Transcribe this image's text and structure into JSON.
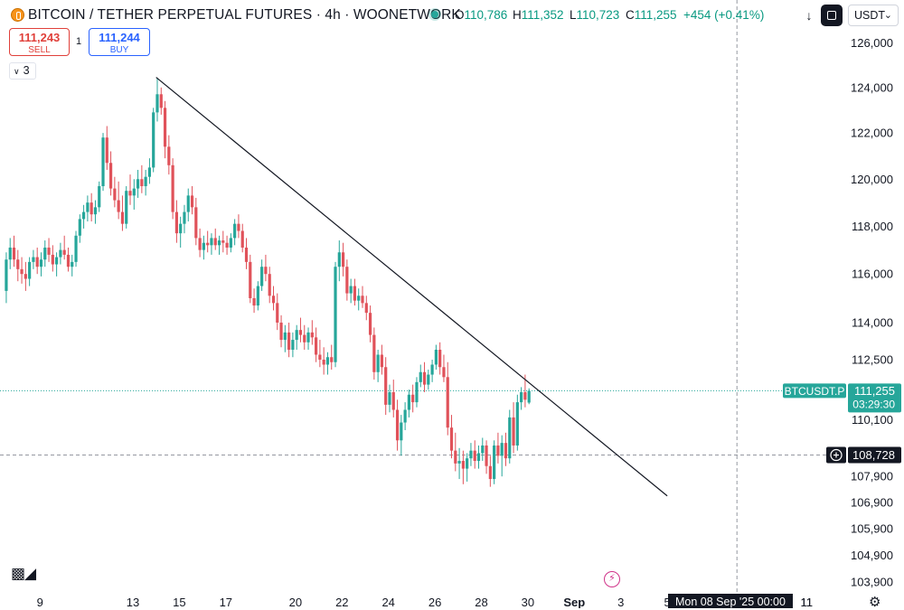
{
  "header": {
    "title": "BITCOIN / TETHER PERPETUAL FUTURES · 4h · WOONETWORK",
    "ohlc": {
      "o_label": "O",
      "o_value": "110,786",
      "h_label": "H",
      "h_value": "111,352",
      "l_label": "L",
      "l_value": "110,723",
      "c_label": "C",
      "c_value": "111,255",
      "change": "+454 (+0.41%)"
    },
    "currency": "USDT",
    "icons": [
      "bitcoin-logo-icon",
      "live-dot-icon",
      "download-icon",
      "fullscreen-icon",
      "chevron-down-icon",
      "plus-circle-icon",
      "tradingview-logo-icon",
      "lightning-icon",
      "gear-icon"
    ]
  },
  "trade": {
    "sell_price": "111,243",
    "sell_label": "SELL",
    "spread": "1",
    "buy_price": "111,244",
    "buy_label": "BUY"
  },
  "indicators_toggle": "3",
  "colors": {
    "up": "#26a69a",
    "down": "#e0525a",
    "trendline": "#131722",
    "price_line": "#26a69a",
    "crosshair": "#9598a1",
    "label_bg": "#131722"
  },
  "chart_data": {
    "type": "candlestick",
    "symbol": "BTCUSDT.P",
    "timeframe": "4h",
    "x_tick_labels": [
      "9",
      "11",
      "13",
      "15",
      "17",
      "20",
      "22",
      "24",
      "26",
      "28",
      "30",
      "Sep",
      "3",
      "5",
      "11"
    ],
    "y_tick_labels": [
      "126,000",
      "124,000",
      "122,000",
      "120,000",
      "118,000",
      "116,000",
      "114,000",
      "112,500",
      "110,100",
      "107,900",
      "106,900",
      "105,900",
      "104,900",
      "103,900"
    ],
    "y_scale": "log",
    "ylim": [
      103400,
      127000
    ],
    "grid": false,
    "series": [
      {
        "name": "BTCUSDT.P",
        "candles": [
          [
            115300,
            116900,
            114800,
            116600
          ],
          [
            116600,
            117500,
            116200,
            117100
          ],
          [
            117100,
            117600,
            116300,
            116600
          ],
          [
            116600,
            117000,
            115700,
            116200
          ],
          [
            116200,
            116700,
            115600,
            116000
          ],
          [
            116000,
            116500,
            115300,
            115800
          ],
          [
            115800,
            116700,
            115500,
            116500
          ],
          [
            116500,
            117000,
            116200,
            116700
          ],
          [
            116700,
            117100,
            116000,
            116300
          ],
          [
            116300,
            116900,
            115900,
            116600
          ],
          [
            116600,
            117400,
            116300,
            117100
          ],
          [
            117100,
            117500,
            116500,
            116800
          ],
          [
            116800,
            117200,
            116100,
            116400
          ],
          [
            116400,
            116900,
            115900,
            116700
          ],
          [
            116700,
            117300,
            116400,
            117000
          ],
          [
            117000,
            117600,
            116600,
            116800
          ],
          [
            116800,
            117100,
            116100,
            116300
          ],
          [
            116300,
            116800,
            115900,
            116500
          ],
          [
            116500,
            117800,
            116300,
            117600
          ],
          [
            117600,
            118500,
            117300,
            118300
          ],
          [
            118300,
            118900,
            117900,
            118600
          ],
          [
            118600,
            119300,
            118200,
            119000
          ],
          [
            119000,
            119400,
            118200,
            118500
          ],
          [
            118500,
            119100,
            118100,
            118800
          ],
          [
            118800,
            119900,
            118600,
            119700
          ],
          [
            119700,
            122000,
            119500,
            121800
          ],
          [
            121800,
            122300,
            120400,
            120700
          ],
          [
            120700,
            121200,
            119300,
            119600
          ],
          [
            119600,
            120100,
            118800,
            119100
          ],
          [
            119100,
            119900,
            118300,
            118600
          ],
          [
            118600,
            119300,
            117800,
            118100
          ],
          [
            118100,
            119700,
            117900,
            119500
          ],
          [
            119500,
            120200,
            118900,
            119300
          ],
          [
            119300,
            120000,
            118700,
            119600
          ],
          [
            119600,
            120400,
            119200,
            120000
          ],
          [
            120000,
            120600,
            119400,
            119700
          ],
          [
            119700,
            120400,
            119300,
            120100
          ],
          [
            120100,
            120900,
            119800,
            120500
          ],
          [
            120500,
            123100,
            120300,
            122900
          ],
          [
            122900,
            124400,
            122500,
            123700
          ],
          [
            123700,
            124000,
            122800,
            123100
          ],
          [
            123100,
            123400,
            120900,
            121400
          ],
          [
            121400,
            121900,
            120200,
            120600
          ],
          [
            120600,
            120900,
            118300,
            118600
          ],
          [
            118600,
            119100,
            117300,
            117700
          ],
          [
            117700,
            118400,
            117100,
            118100
          ],
          [
            118100,
            118900,
            117700,
            118600
          ],
          [
            118600,
            119600,
            118200,
            119300
          ],
          [
            119300,
            119700,
            118500,
            118800
          ],
          [
            118800,
            119200,
            117200,
            117500
          ],
          [
            117500,
            117900,
            116700,
            117000
          ],
          [
            117000,
            117600,
            116600,
            117300
          ],
          [
            117300,
            117800,
            116900,
            117200
          ],
          [
            117200,
            117700,
            116800,
            117500
          ],
          [
            117500,
            117900,
            117000,
            117200
          ],
          [
            117200,
            117600,
            116800,
            117400
          ],
          [
            117400,
            117800,
            116900,
            117300
          ],
          [
            117300,
            117600,
            116800,
            117100
          ],
          [
            117100,
            117700,
            116900,
            117500
          ],
          [
            117500,
            118300,
            117200,
            118100
          ],
          [
            118100,
            118500,
            117500,
            117800
          ],
          [
            117800,
            118100,
            116900,
            117100
          ],
          [
            117100,
            117500,
            116200,
            116500
          ],
          [
            116500,
            116800,
            114800,
            115000
          ],
          [
            115000,
            115400,
            114400,
            114700
          ],
          [
            114700,
            115700,
            114500,
            115500
          ],
          [
            115500,
            116600,
            115300,
            116300
          ],
          [
            116300,
            116800,
            115700,
            116000
          ],
          [
            116000,
            116300,
            114800,
            115100
          ],
          [
            115100,
            115500,
            114500,
            114800
          ],
          [
            114800,
            115200,
            113700,
            114000
          ],
          [
            114000,
            114300,
            113000,
            113300
          ],
          [
            113300,
            113900,
            112800,
            113600
          ],
          [
            113600,
            114000,
            112600,
            112900
          ],
          [
            112900,
            113600,
            112600,
            113300
          ],
          [
            113300,
            113900,
            112900,
            113700
          ],
          [
            113700,
            114200,
            113200,
            113500
          ],
          [
            113500,
            113900,
            112900,
            113200
          ],
          [
            113200,
            113800,
            112900,
            113600
          ],
          [
            113600,
            114100,
            113100,
            113400
          ],
          [
            113400,
            113800,
            112400,
            112700
          ],
          [
            112700,
            113300,
            112200,
            112500
          ],
          [
            112500,
            113000,
            111900,
            112300
          ],
          [
            112300,
            112800,
            111900,
            112600
          ],
          [
            112600,
            113100,
            112100,
            112400
          ],
          [
            112400,
            116500,
            112200,
            116300
          ],
          [
            116300,
            117400,
            115700,
            116900
          ],
          [
            116900,
            117300,
            115900,
            116300
          ],
          [
            116300,
            116600,
            114900,
            115200
          ],
          [
            115200,
            115800,
            114800,
            115500
          ],
          [
            115500,
            115800,
            114700,
            114900
          ],
          [
            114900,
            115400,
            114500,
            115100
          ],
          [
            115100,
            115500,
            114600,
            114800
          ],
          [
            114800,
            115100,
            114100,
            114400
          ],
          [
            114400,
            114700,
            113200,
            113500
          ],
          [
            113500,
            113800,
            111700,
            112000
          ],
          [
            112000,
            112900,
            111600,
            112700
          ],
          [
            112700,
            113100,
            111900,
            112200
          ],
          [
            112200,
            112600,
            110300,
            110700
          ],
          [
            110700,
            111500,
            110400,
            111200
          ],
          [
            111200,
            111700,
            110200,
            110500
          ],
          [
            110500,
            110900,
            108900,
            109300
          ],
          [
            109300,
            110300,
            108700,
            110000
          ],
          [
            110000,
            110800,
            109700,
            110500
          ],
          [
            110500,
            111300,
            110200,
            111100
          ],
          [
            111100,
            111500,
            110400,
            110800
          ],
          [
            110800,
            111800,
            110600,
            111600
          ],
          [
            111600,
            112300,
            111400,
            112000
          ],
          [
            112000,
            112400,
            111200,
            111500
          ],
          [
            111500,
            112100,
            111300,
            111900
          ],
          [
            111900,
            112500,
            111600,
            112300
          ],
          [
            112300,
            113100,
            112100,
            112900
          ],
          [
            112900,
            113200,
            111900,
            112200
          ],
          [
            112200,
            112700,
            111600,
            111800
          ],
          [
            111800,
            112400,
            109500,
            109800
          ],
          [
            109800,
            110300,
            108600,
            108900
          ],
          [
            108900,
            109600,
            108100,
            108400
          ],
          [
            108400,
            109000,
            107800,
            108500
          ],
          [
            108500,
            108900,
            107600,
            108200
          ],
          [
            108200,
            108800,
            107700,
            108600
          ],
          [
            108600,
            109200,
            108300,
            108900
          ],
          [
            108900,
            109300,
            108200,
            108500
          ],
          [
            108500,
            109100,
            108200,
            108800
          ],
          [
            108800,
            109400,
            108500,
            109100
          ],
          [
            109100,
            109300,
            108000,
            108300
          ],
          [
            108300,
            108700,
            107500,
            107800
          ],
          [
            107800,
            109300,
            107600,
            109100
          ],
          [
            109100,
            109600,
            108400,
            108700
          ],
          [
            108700,
            109500,
            107900,
            109200
          ],
          [
            109200,
            109600,
            108300,
            108600
          ],
          [
            108600,
            110500,
            108400,
            110200
          ],
          [
            110200,
            110800,
            108800,
            109100
          ],
          [
            109100,
            111100,
            108900,
            110800
          ],
          [
            110800,
            111400,
            110500,
            111200
          ],
          [
            111200,
            111900,
            110600,
            110900
          ],
          [
            110786,
            111352,
            110723,
            111255
          ]
        ]
      }
    ],
    "trendline": {
      "from": {
        "date": "Aug 14",
        "price": 124450
      },
      "to": {
        "date": "Sep 5",
        "price": 107150
      }
    },
    "price_label": {
      "symbol": "BTCUSDT.P",
      "price": "111,255",
      "countdown": "03:29:30",
      "value": 111255
    },
    "crosshair": {
      "price": "108,728",
      "value": 108728,
      "date": "Mon 08 Sep '25",
      "time": "00:00"
    }
  }
}
